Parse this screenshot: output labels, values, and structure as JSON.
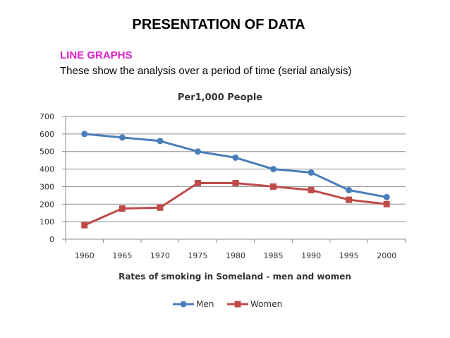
{
  "slide": {
    "title": "PRESENTATION OF DATA",
    "heading": "LINE GRAPHS",
    "heading_color": "#e020d0",
    "description": "These show the analysis over a period of time (serial analysis)"
  },
  "chart_data": {
    "type": "line",
    "title": "Per1,000 People",
    "xlabel": "Rates of smoking  in Someland - men and women",
    "ylabel": "",
    "categories": [
      "1960",
      "1965",
      "1970",
      "1975",
      "1980",
      "1985",
      "1990",
      "1995",
      "2000"
    ],
    "yticks": [
      0,
      100,
      200,
      300,
      400,
      500,
      600,
      700
    ],
    "ylim": [
      0,
      700
    ],
    "grid": true,
    "legend_position": "bottom",
    "series": [
      {
        "name": "Men",
        "color": "#4a7ebb",
        "marker": "circle",
        "values": [
          600,
          580,
          560,
          500,
          465,
          400,
          380,
          280,
          240
        ]
      },
      {
        "name": "Women",
        "color": "#be4b48",
        "marker": "square",
        "values": [
          80,
          175,
          180,
          320,
          320,
          300,
          280,
          225,
          200
        ]
      }
    ]
  }
}
